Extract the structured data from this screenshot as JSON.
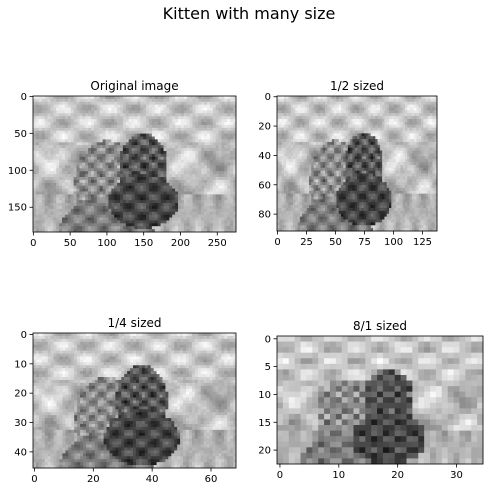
{
  "figure": {
    "title": "Kitten with many size"
  },
  "chart_data": [
    {
      "type": "heatmap",
      "title": "Original image",
      "colormap": "gray",
      "image_size": [
        276,
        184
      ],
      "xlim": [
        0,
        276
      ],
      "ylim": [
        184,
        0
      ],
      "xticks": [
        0,
        50,
        100,
        150,
        200,
        250
      ],
      "yticks": [
        0,
        50,
        100,
        150
      ],
      "kittens": [
        [
          100,
          120,
          40
        ],
        [
          150,
          95,
          30
        ]
      ]
    },
    {
      "type": "heatmap",
      "title": "1/2 sized",
      "colormap": "gray",
      "image_size": [
        138,
        92
      ],
      "xlim": [
        0,
        138
      ],
      "ylim": [
        92,
        0
      ],
      "xticks": [
        0,
        25,
        50,
        75,
        100,
        125
      ],
      "yticks": [
        0,
        20,
        40,
        60,
        80
      ],
      "kittens": [
        [
          50,
          60,
          20
        ],
        [
          75,
          47,
          15
        ]
      ]
    },
    {
      "type": "heatmap",
      "title": "1/4 sized",
      "colormap": "gray",
      "image_size": [
        69,
        46
      ],
      "xlim": [
        0,
        69
      ],
      "ylim": [
        46,
        0
      ],
      "xticks": [
        0,
        20,
        40,
        60
      ],
      "yticks": [
        0,
        10,
        20,
        30,
        40
      ],
      "kittens": [
        [
          25,
          30,
          10
        ],
        [
          37,
          23,
          8
        ]
      ]
    },
    {
      "type": "heatmap",
      "title": "8/1 sized",
      "colormap": "gray",
      "image_size": [
        35,
        23
      ],
      "xlim": [
        0,
        35
      ],
      "ylim": [
        23,
        0
      ],
      "xticks": [
        0,
        10,
        20,
        30
      ],
      "yticks": [
        0,
        5,
        10,
        15,
        20
      ],
      "kittens": [
        [
          12,
          15,
          5
        ],
        [
          19,
          12,
          4
        ]
      ]
    }
  ]
}
